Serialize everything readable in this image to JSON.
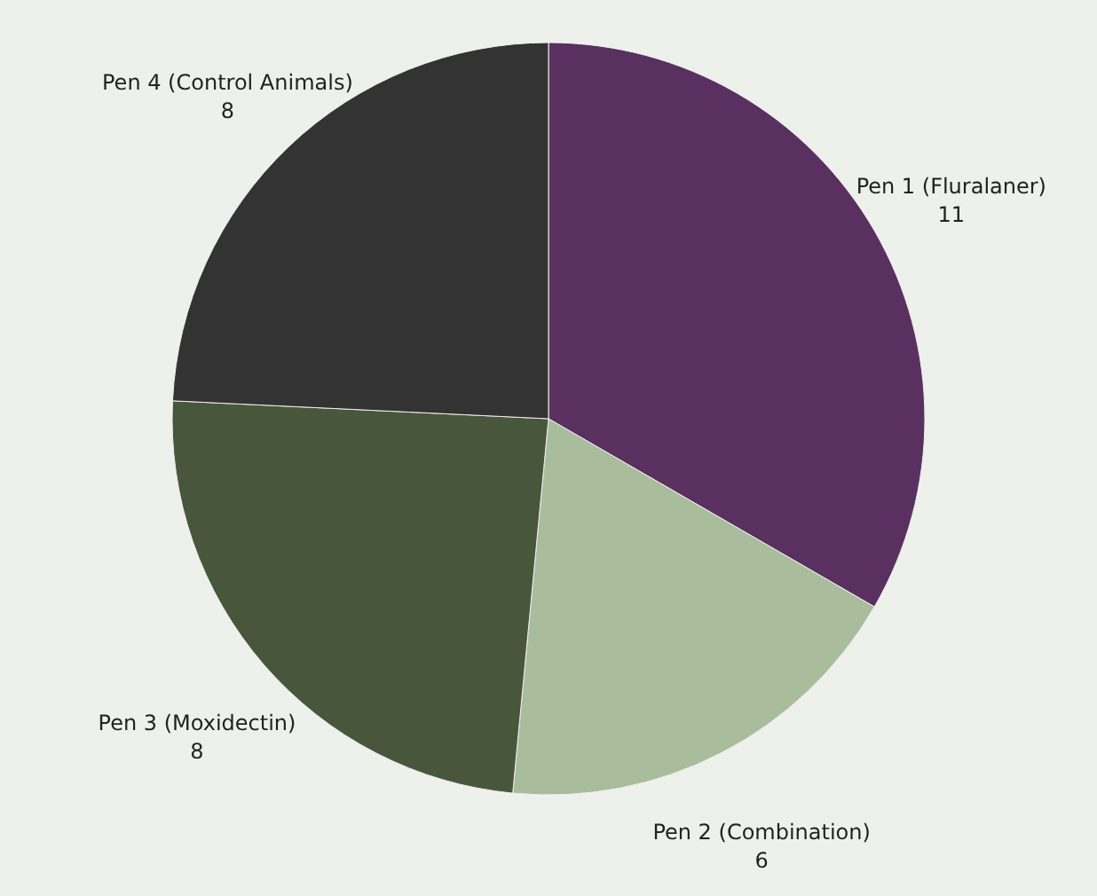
{
  "chart_data": {
    "type": "pie",
    "categories": [
      "Pen 1 (Fluralaner)",
      "Pen 2 (Combination)",
      "Pen 3 (Moxidectin)",
      "Pen 4 (Control Animals)"
    ],
    "values": [
      11,
      6,
      8,
      8
    ],
    "colors": [
      "#5a3060",
      "#a9bc9c",
      "#48573c",
      "#333333"
    ],
    "data_labels": true
  }
}
